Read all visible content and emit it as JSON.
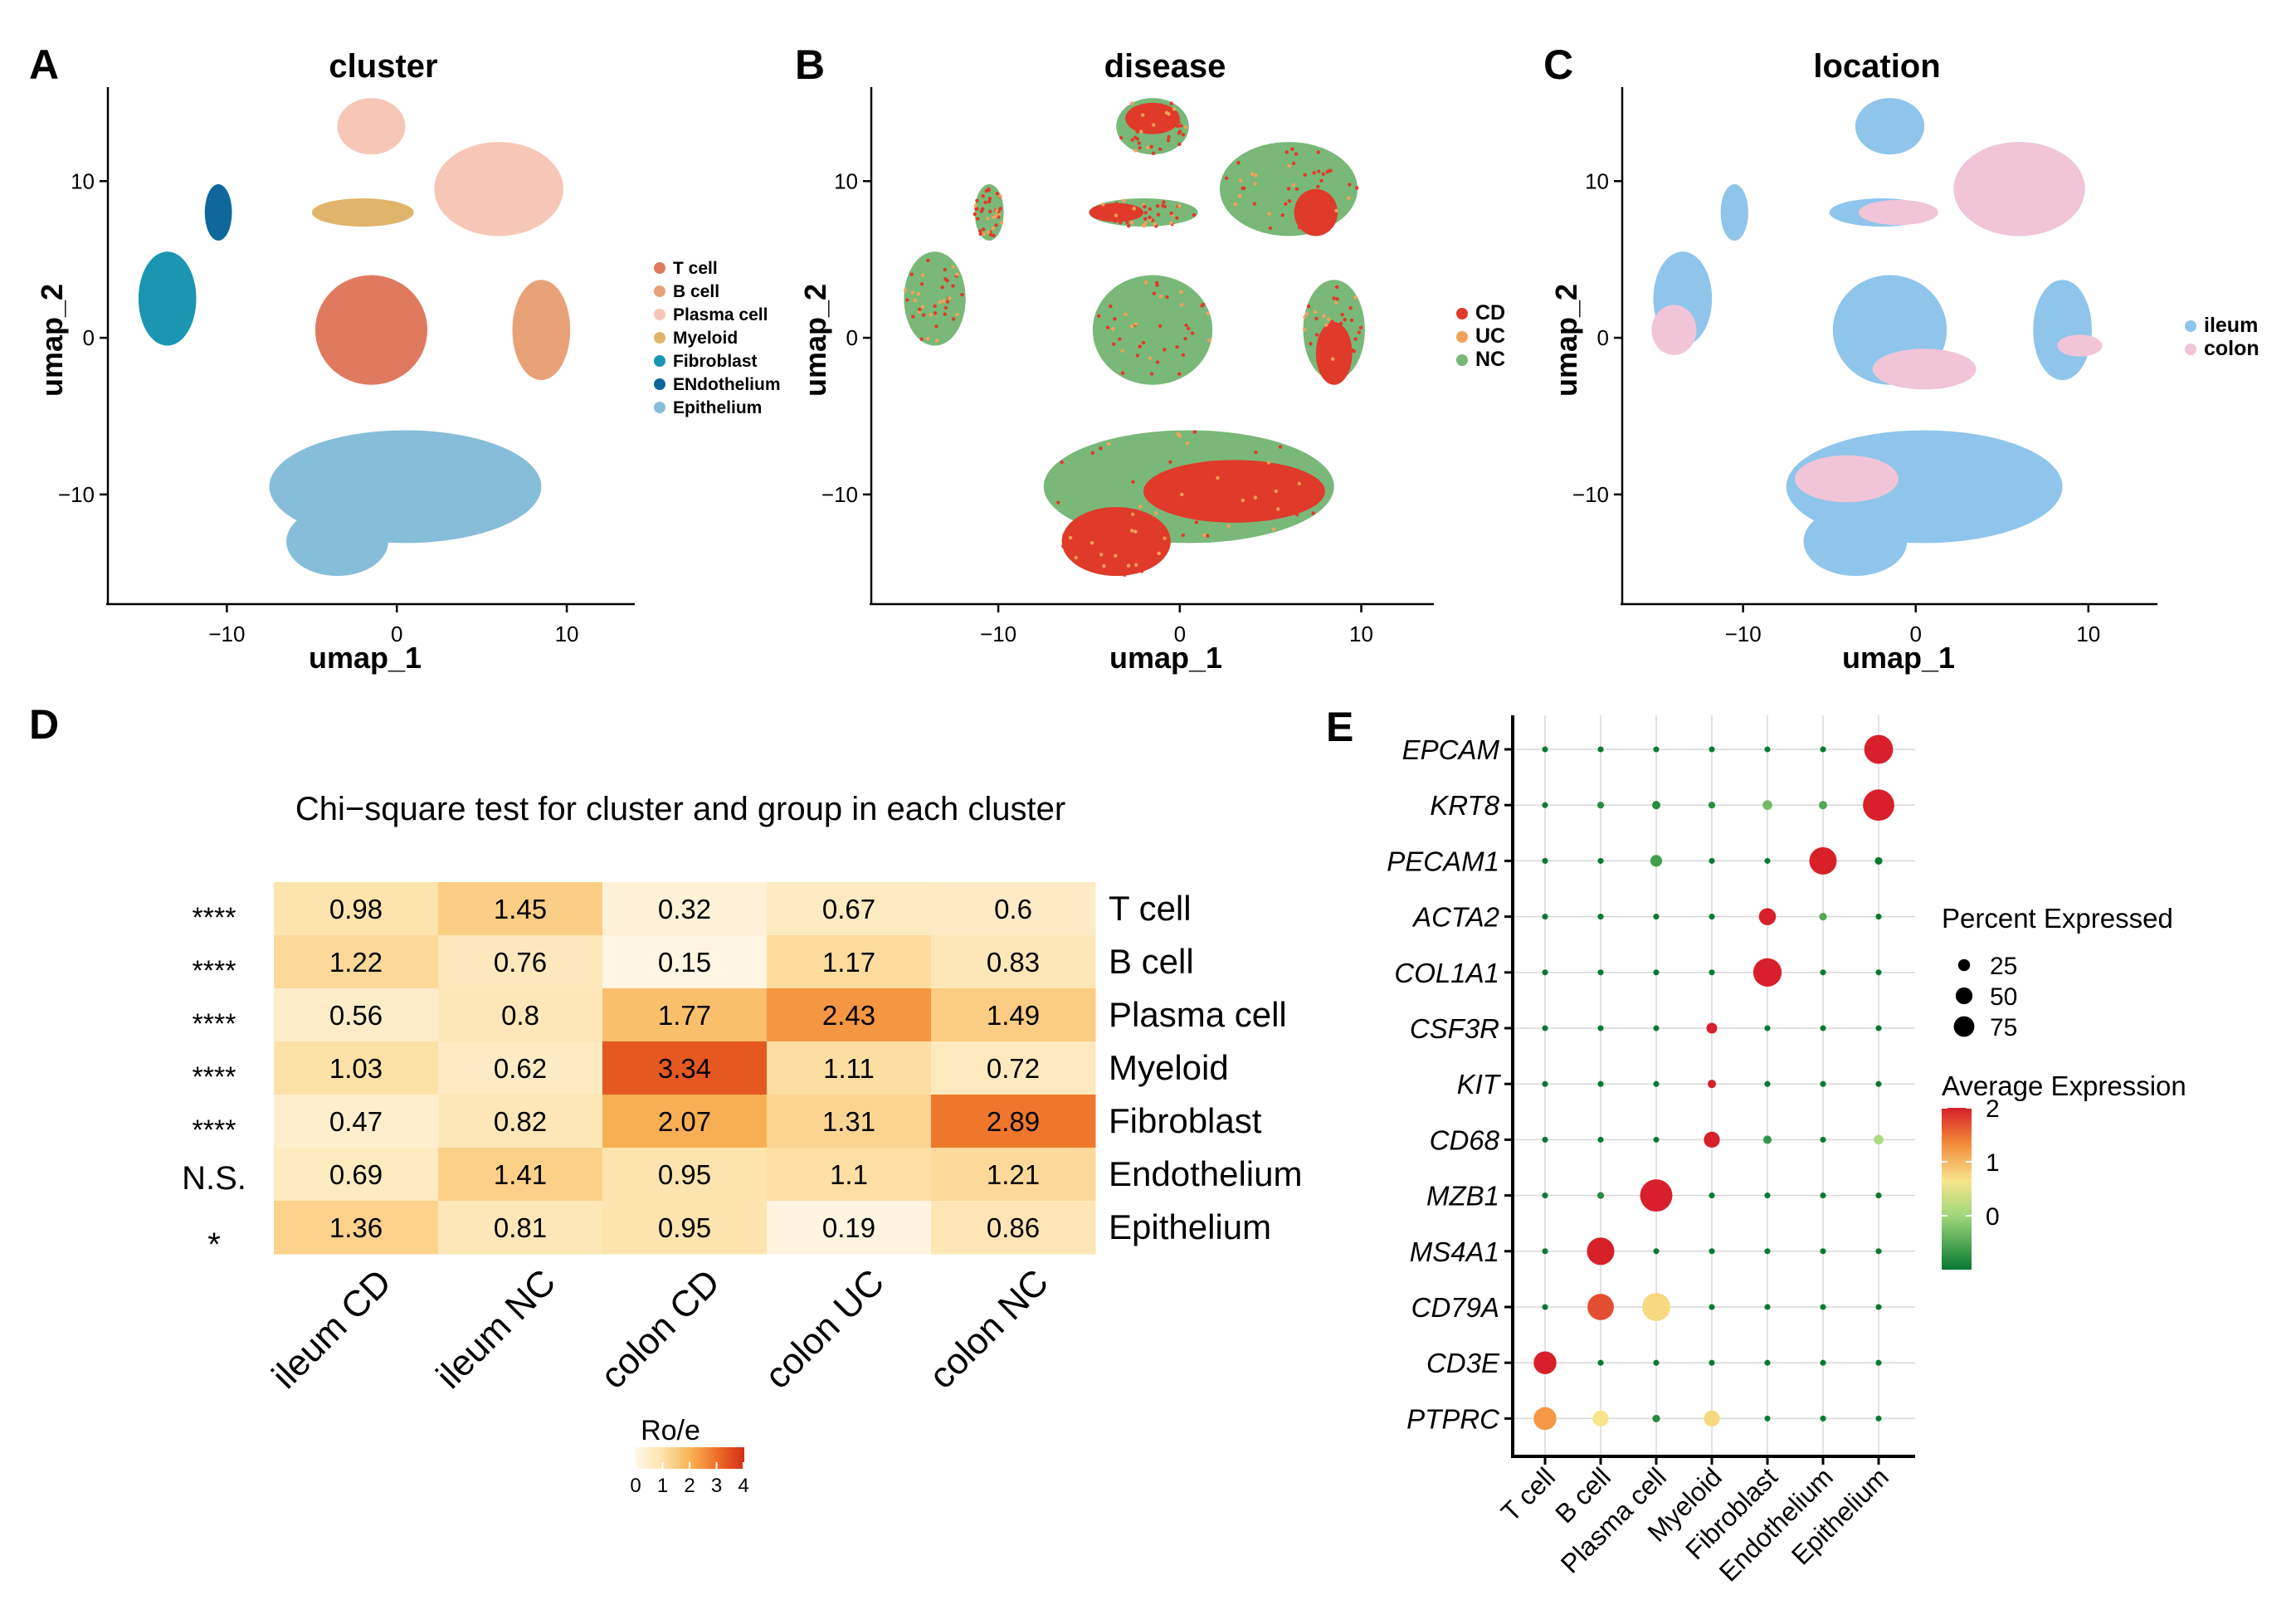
{
  "panels": {
    "A": {
      "letter": "A",
      "title": "cluster",
      "xlabel": "umap_1",
      "ylabel": "umap_2"
    },
    "B": {
      "letter": "B",
      "title": "disease",
      "xlabel": "umap_1",
      "ylabel": "umap_2"
    },
    "C": {
      "letter": "C",
      "title": "location",
      "xlabel": "umap_1",
      "ylabel": "umap_2"
    },
    "D": {
      "letter": "D"
    },
    "E": {
      "letter": "E"
    }
  },
  "colors": {
    "T cell": "#e07a5f",
    "B cell": "#e9a178",
    "Plasma cell": "#f6c7b6",
    "Myeloid": "#dfb56b",
    "Fibroblast": "#1a95b2",
    "ENdothelium": "#10679b",
    "Epithelium": "#86bdd8",
    "CD": "#e03a2a",
    "UC": "#f4a25a",
    "NC": "#79b879",
    "ileum": "#8fc5ea",
    "colon": "#f1c4d8"
  },
  "chart_data": [
    {
      "id": "A",
      "type": "scatter",
      "title": "cluster",
      "xlabel": "umap_1",
      "ylabel": "umap_2",
      "xlim": [
        -17,
        14
      ],
      "ylim": [
        -17,
        16
      ],
      "xticks": [
        -10,
        0,
        10
      ],
      "yticks": [
        10,
        0,
        -10
      ],
      "xtick_labels": [
        "−10",
        "0",
        "10"
      ],
      "ytick_labels": [
        "10",
        "0",
        "−10"
      ],
      "legend": [
        "T cell",
        "B cell",
        "Plasma cell",
        "Myeloid",
        "Fibroblast",
        "ENdothelium",
        "Epithelium"
      ],
      "legend_position": "right",
      "clusters": [
        {
          "name": "T cell",
          "cx": -1.5,
          "cy": 0.5,
          "rx": 3.3,
          "ry": 3.5
        },
        {
          "name": "B cell",
          "cx": 8.5,
          "cy": 0.5,
          "rx": 1.7,
          "ry": 3.2
        },
        {
          "name": "Plasma cell",
          "cx": -1.5,
          "cy": 13.5,
          "rx": 2.0,
          "ry": 1.8
        },
        {
          "name": "Plasma cell",
          "cx": 6.0,
          "cy": 9.5,
          "rx": 3.8,
          "ry": 3.0
        },
        {
          "name": "Myeloid",
          "cx": -2.0,
          "cy": 8.0,
          "rx": 3.0,
          "ry": 0.9
        },
        {
          "name": "Fibroblast",
          "cx": -13.5,
          "cy": 2.5,
          "rx": 1.7,
          "ry": 3.0
        },
        {
          "name": "ENdothelium",
          "cx": -10.5,
          "cy": 8.0,
          "rx": 0.8,
          "ry": 1.8
        },
        {
          "name": "Epithelium",
          "cx": 0.5,
          "cy": -9.5,
          "rx": 8.0,
          "ry": 3.6
        },
        {
          "name": "Epithelium",
          "cx": -3.5,
          "cy": -13.0,
          "rx": 3.0,
          "ry": 2.2
        }
      ]
    },
    {
      "id": "B",
      "type": "scatter",
      "title": "disease",
      "xlabel": "umap_1",
      "ylabel": "umap_2",
      "xlim": [
        -17,
        14
      ],
      "ylim": [
        -17,
        16
      ],
      "xticks": [
        -10,
        0,
        10
      ],
      "yticks": [
        10,
        0,
        -10
      ],
      "xtick_labels": [
        "−10",
        "0",
        "10"
      ],
      "ytick_labels": [
        "10",
        "0",
        "−10"
      ],
      "legend": [
        "CD",
        "UC",
        "NC"
      ],
      "legend_position": "right"
    },
    {
      "id": "C",
      "type": "scatter",
      "title": "location",
      "xlabel": "umap_1",
      "ylabel": "umap_2",
      "xlim": [
        -17,
        14
      ],
      "ylim": [
        -17,
        16
      ],
      "xticks": [
        -10,
        0,
        10
      ],
      "yticks": [
        10,
        0,
        -10
      ],
      "xtick_labels": [
        "−10",
        "0",
        "10"
      ],
      "ytick_labels": [
        "10",
        "0",
        "−10"
      ],
      "legend": [
        "ileum",
        "colon"
      ],
      "legend_position": "right"
    },
    {
      "id": "D",
      "type": "heatmap",
      "title": "Chi−square test for cluster and group in each cluster",
      "rows": [
        "T cell",
        "B cell",
        "Plasma cell",
        "Myeloid",
        "Fibroblast",
        "Endothelium",
        "Epithelium"
      ],
      "columns": [
        "ileum CD",
        "ileum NC",
        "colon CD",
        "colon UC",
        "colon NC"
      ],
      "values": [
        [
          0.98,
          1.45,
          0.32,
          0.67,
          0.6
        ],
        [
          1.22,
          0.76,
          0.15,
          1.17,
          0.83
        ],
        [
          0.56,
          0.8,
          1.77,
          2.43,
          1.49
        ],
        [
          1.03,
          0.62,
          3.34,
          1.11,
          0.72
        ],
        [
          0.47,
          0.82,
          2.07,
          1.31,
          2.89
        ],
        [
          0.69,
          1.41,
          0.95,
          1.1,
          1.21
        ],
        [
          1.36,
          0.81,
          0.95,
          0.19,
          0.86
        ]
      ],
      "significance": [
        "****",
        "****",
        "****",
        "****",
        "****",
        "N.S.",
        "*"
      ],
      "legend_title": "Ro/e",
      "legend_ticks": [
        "0",
        "1",
        "2",
        "3",
        "4"
      ],
      "scale_range": [
        0,
        4
      ]
    },
    {
      "id": "E",
      "type": "scatter",
      "subtype": "dotplot",
      "genes": [
        "EPCAM",
        "KRT8",
        "PECAM1",
        "ACTA2",
        "COL1A1",
        "CSF3R",
        "KIT",
        "CD68",
        "MZB1",
        "MS4A1",
        "CD79A",
        "CD3E",
        "PTPRC"
      ],
      "cell_types": [
        "T cell",
        "B cell",
        "Plasma cell",
        "Myeloid",
        "Fibroblast",
        "Endothelium",
        "Epithelium"
      ],
      "avg_expression": [
        [
          -1,
          -1,
          -1,
          -1,
          -1,
          -1,
          2.0
        ],
        [
          -1,
          -0.8,
          -0.8,
          -0.8,
          -0.3,
          -0.5,
          2.0
        ],
        [
          -1,
          -1,
          -0.6,
          -1,
          -1,
          2.0,
          -1
        ],
        [
          -1,
          -1,
          -1,
          -1,
          2.0,
          -0.5,
          -1
        ],
        [
          -1,
          -1,
          -1,
          -1,
          2.0,
          -1,
          -1
        ],
        [
          -1,
          -1,
          -1,
          2.0,
          -1,
          -1,
          -1
        ],
        [
          -1,
          -1,
          -1,
          2.0,
          -1,
          -1,
          -1
        ],
        [
          -1,
          -1,
          -1,
          2.0,
          -0.7,
          -1,
          0.1
        ],
        [
          -1,
          -0.8,
          2.0,
          -1,
          -1,
          -1,
          -1
        ],
        [
          -1,
          2.0,
          -1,
          -1,
          -1,
          -1,
          -1
        ],
        [
          -1,
          1.7,
          0.7,
          -1,
          -1,
          -1,
          -1
        ],
        [
          2.0,
          -1,
          -1,
          -1,
          -1,
          -1,
          -1
        ],
        [
          1.2,
          0.6,
          -0.8,
          0.7,
          -1,
          -1,
          -1
        ]
      ],
      "pct_expressed": [
        [
          3,
          3,
          3,
          3,
          3,
          3,
          72
        ],
        [
          3,
          4,
          6,
          4,
          8,
          6,
          85
        ],
        [
          3,
          3,
          12,
          3,
          3,
          65,
          5
        ],
        [
          3,
          3,
          3,
          3,
          25,
          5,
          3
        ],
        [
          3,
          3,
          3,
          3,
          70,
          3,
          3
        ],
        [
          3,
          3,
          3,
          10,
          3,
          3,
          3
        ],
        [
          3,
          3,
          3,
          6,
          3,
          3,
          3
        ],
        [
          3,
          3,
          3,
          22,
          6,
          3,
          8
        ],
        [
          3,
          4,
          90,
          3,
          3,
          3,
          3
        ],
        [
          3,
          65,
          3,
          3,
          3,
          3,
          3
        ],
        [
          3,
          60,
          68,
          3,
          3,
          3,
          3
        ],
        [
          45,
          3,
          3,
          3,
          3,
          3,
          3
        ],
        [
          45,
          22,
          5,
          22,
          3,
          3,
          3
        ]
      ],
      "size_legend_title": "Percent Expressed",
      "size_legend": [
        25,
        50,
        75
      ],
      "color_legend_title": "Average Expression",
      "color_legend_ticks": [
        2,
        1,
        0
      ],
      "color_range": [
        -1,
        2
      ]
    }
  ]
}
